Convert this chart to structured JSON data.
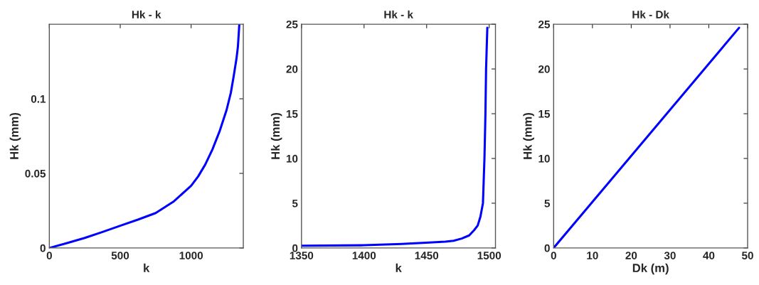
{
  "chart_data": [
    {
      "type": "line",
      "title": "Hk - k",
      "xlabel": "k",
      "ylabel": "Hk (mm)",
      "xlim": [
        0,
        1368
      ],
      "ylim": [
        0,
        0.15
      ],
      "xticks": [
        0,
        500,
        1000
      ],
      "yticks": [
        0,
        0.05,
        0.1
      ],
      "grid": false,
      "series": [
        {
          "color": "#0000ff",
          "x": [
            0,
            125,
            250,
            375,
            500,
            625,
            750,
            875,
            1000,
            1050,
            1100,
            1150,
            1200,
            1250,
            1280,
            1300,
            1320,
            1330,
            1340
          ],
          "values": [
            0,
            0.0033,
            0.0067,
            0.0107,
            0.0149,
            0.019,
            0.0234,
            0.031,
            0.0417,
            0.048,
            0.056,
            0.066,
            0.078,
            0.0925,
            0.104,
            0.115,
            0.127,
            0.135,
            0.15
          ]
        }
      ]
    },
    {
      "type": "line",
      "title": "Hk - k",
      "xlabel": "k",
      "ylabel": "Hk (mm)",
      "xlim": [
        1350,
        1505
      ],
      "ylim": [
        0,
        25
      ],
      "xticks": [
        1350,
        1400,
        1450,
        1500
      ],
      "yticks": [
        0,
        5,
        10,
        15,
        20,
        25
      ],
      "grid": false,
      "series": [
        {
          "color": "#0000ff",
          "x": [
            1350,
            1400,
            1430,
            1452,
            1465,
            1471.6,
            1478,
            1484,
            1488,
            1490.8,
            1493,
            1495,
            1496.2,
            1497,
            1497.5,
            1498.5
          ],
          "values": [
            0.25,
            0.3,
            0.45,
            0.6,
            0.7,
            0.8,
            1.05,
            1.4,
            2.0,
            2.5,
            3.5,
            5,
            10,
            15,
            20,
            24.6
          ]
        }
      ]
    },
    {
      "type": "line",
      "title": "Hk - Dk",
      "xlabel": "Dk (m)",
      "ylabel": "Hk (mm)",
      "xlim": [
        0,
        50
      ],
      "ylim": [
        0,
        25
      ],
      "xticks": [
        0,
        10,
        20,
        30,
        40,
        50
      ],
      "yticks": [
        0,
        5,
        10,
        15,
        20,
        25
      ],
      "grid": false,
      "series": [
        {
          "color": "#0000ff",
          "x": [
            0,
            47.8
          ],
          "values": [
            0,
            24.6
          ]
        }
      ]
    }
  ]
}
